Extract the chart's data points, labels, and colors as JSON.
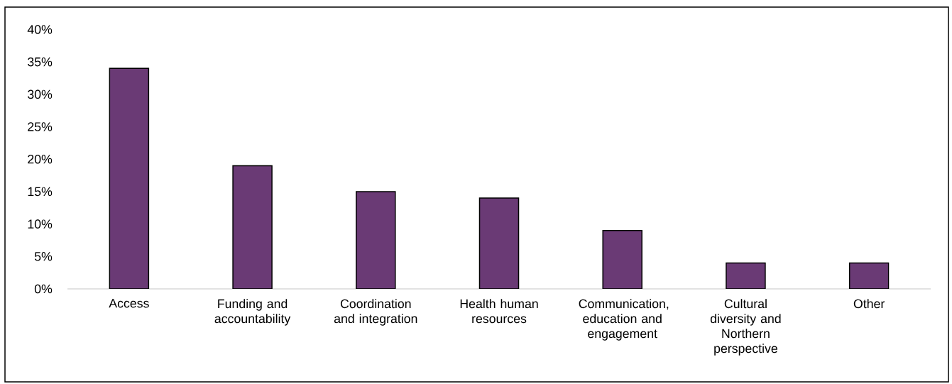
{
  "chart_data": {
    "type": "bar",
    "categories": [
      "Access",
      "Funding and accountability",
      "Coordination and integration",
      "Health human resources",
      "Communication, education and engagement",
      "Cultural diversity and Northern perspective",
      "Other"
    ],
    "values": [
      34,
      19,
      15,
      14,
      9,
      4,
      4
    ],
    "color": "#6a3a75",
    "ylim": [
      0,
      40
    ],
    "yticks": [
      {
        "value": 0,
        "label": "0%"
      },
      {
        "value": 5,
        "label": "5%"
      },
      {
        "value": 10,
        "label": "10%"
      },
      {
        "value": 15,
        "label": "15%"
      },
      {
        "value": 20,
        "label": "20%"
      },
      {
        "value": 25,
        "label": "25%"
      },
      {
        "value": 30,
        "label": "30%"
      },
      {
        "value": 35,
        "label": "35%"
      },
      {
        "value": 40,
        "label": "40%"
      }
    ]
  }
}
